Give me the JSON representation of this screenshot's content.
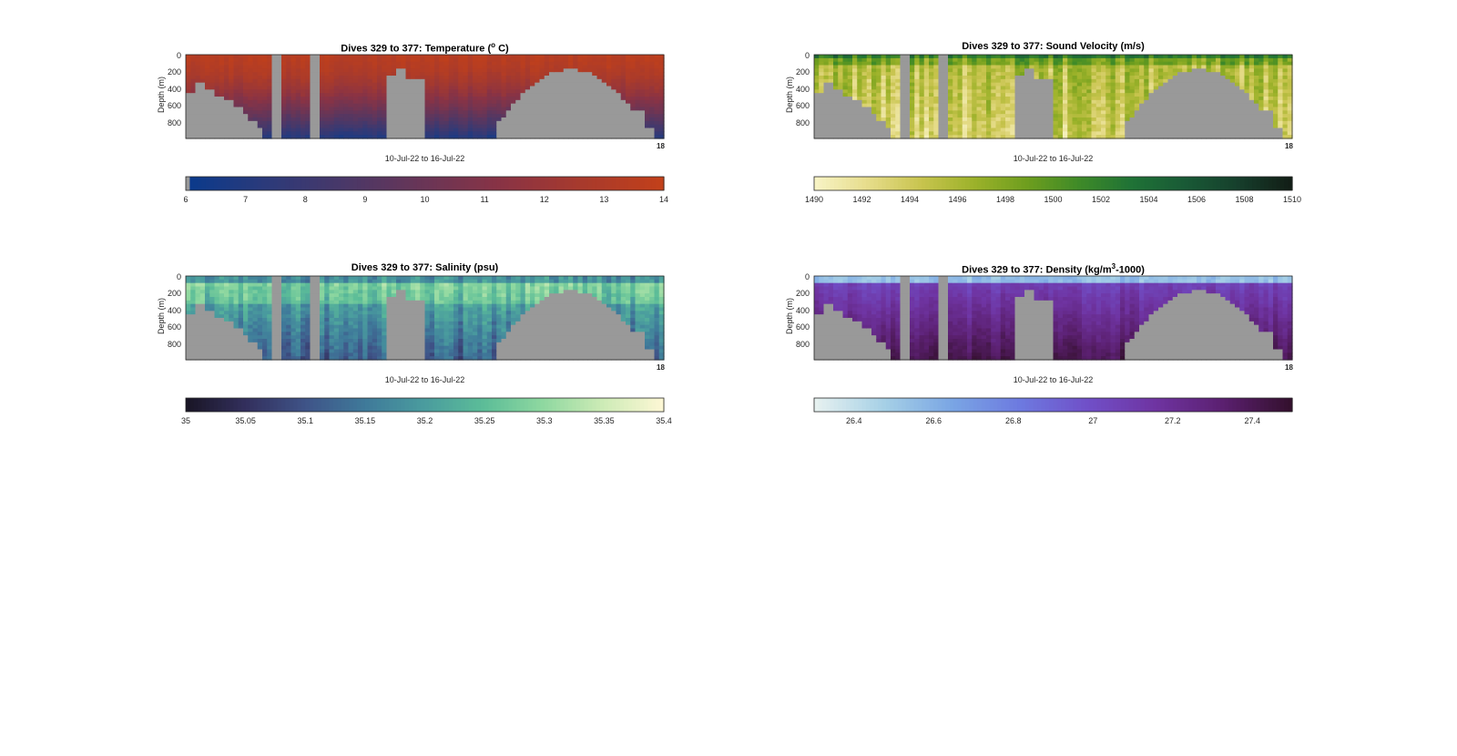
{
  "panels": [
    {
      "title": "Dives 329 to 377: Temperature (",
      "title_sup": "o",
      "title_tail": " C)",
      "ylabel": "Depth (m)",
      "xlabel": "10-Jul-22 to 16-Jul-22",
      "end_tick": "18",
      "yticks": [
        "0",
        "200",
        "400",
        "600",
        "800"
      ],
      "cbar_ticks": [
        "6",
        "7",
        "8",
        "9",
        "10",
        "11",
        "12",
        "13",
        "14"
      ],
      "colormap": [
        "#0a3a8c",
        "#2c3a7a",
        "#4a3868",
        "#6a3556",
        "#8a3344",
        "#a83a2c",
        "#c2401a"
      ],
      "surface_color": "#b8461c",
      "deep_color": "#1e3f94",
      "noise": 0.04
    },
    {
      "title": "Dives 329 to 377: Sound Velocity (m/s)",
      "title_sup": "",
      "title_tail": "",
      "ylabel": "Depth (m)",
      "xlabel": "10-Jul-22 to 16-Jul-22",
      "end_tick": "18",
      "yticks": [
        "0",
        "200",
        "400",
        "600",
        "800"
      ],
      "cbar_ticks": [
        "1490",
        "1492",
        "1494",
        "1496",
        "1498",
        "1500",
        "1502",
        "1504",
        "1506",
        "1508",
        "1510"
      ],
      "colormap": [
        "#f7f3c4",
        "#e6dc8a",
        "#c8c44e",
        "#9cb22a",
        "#6e9e1e",
        "#3e8a28",
        "#1f7236",
        "#195a36",
        "#163f2c",
        "#121e16"
      ],
      "surface_color": "#2e8a30",
      "deep_color": "#c9c655",
      "noise": 0.12
    },
    {
      "title": "Dives 329 to 377: Salinity (psu)",
      "title_sup": "",
      "title_tail": "",
      "ylabel": "Depth (m)",
      "xlabel": "10-Jul-22 to 16-Jul-22",
      "end_tick": "18",
      "yticks": [
        "0",
        "200",
        "400",
        "600",
        "800"
      ],
      "cbar_ticks": [
        "35",
        "35.05",
        "35.1",
        "35.15",
        "35.2",
        "35.25",
        "35.3",
        "35.35",
        "35.4"
      ],
      "colormap": [
        "#1a1626",
        "#33305e",
        "#3f5488",
        "#3f7a9a",
        "#4a9c9e",
        "#5cbd98",
        "#8fd8a0",
        "#cdebb6",
        "#fcf7d4"
      ],
      "surface_color": "#b7e5ac",
      "deep_color": "#3e8aa0",
      "noise": 0.1
    },
    {
      "title": "Dives 329 to 377: Density (kg/m",
      "title_sup": "3",
      "title_tail": "-1000)",
      "ylabel": "Depth (m)",
      "xlabel": "10-Jul-22 to 16-Jul-22",
      "end_tick": "18",
      "yticks": [
        "0",
        "200",
        "400",
        "600",
        "800"
      ],
      "cbar_ticks": [
        "26.4",
        "26.6",
        "26.8",
        "27",
        "27.2",
        "27.4"
      ],
      "colormap": [
        "#e6f1f0",
        "#a6d0e6",
        "#7aa6e4",
        "#6d7ae0",
        "#7050c8",
        "#6f34a2",
        "#5b2070",
        "#34102e"
      ],
      "surface_color": "#8ab6e6",
      "deep_color": "#3b1238",
      "noise": 0.05
    }
  ],
  "chart_data": [
    {
      "type": "heatmap",
      "title": "Dives 329 to 377: Temperature (o C)",
      "xlabel": "10-Jul-22 to 16-Jul-22",
      "ylabel": "Depth (m)",
      "ylim": [
        0,
        1000
      ],
      "y_reversed": true,
      "colorbar_range": [
        6,
        14
      ],
      "colorbar_ticks": [
        6,
        7,
        8,
        9,
        10,
        11,
        12,
        13,
        14
      ],
      "surface_value": 13.5,
      "bottom_value": 6.8
    },
    {
      "type": "heatmap",
      "title": "Dives 329 to 377: Sound Velocity (m/s)",
      "xlabel": "10-Jul-22 to 16-Jul-22",
      "ylabel": "Depth (m)",
      "ylim": [
        0,
        1000
      ],
      "y_reversed": true,
      "colorbar_range": [
        1490,
        1510
      ],
      "colorbar_ticks": [
        1490,
        1492,
        1494,
        1496,
        1498,
        1500,
        1502,
        1504,
        1506,
        1508,
        1510
      ],
      "surface_value": 1503,
      "bottom_value": 1496
    },
    {
      "type": "heatmap",
      "title": "Dives 329 to 377: Salinity (psu)",
      "xlabel": "10-Jul-22 to 16-Jul-22",
      "ylabel": "Depth (m)",
      "ylim": [
        0,
        1000
      ],
      "y_reversed": true,
      "colorbar_range": [
        35,
        35.4
      ],
      "colorbar_ticks": [
        35,
        35.05,
        35.1,
        35.15,
        35.2,
        35.25,
        35.3,
        35.35,
        35.4
      ],
      "surface_value": 35.33,
      "bottom_value": 35.18
    },
    {
      "type": "heatmap",
      "title": "Dives 329 to 377: Density (kg/m3-1000)",
      "xlabel": "10-Jul-22 to 16-Jul-22",
      "ylabel": "Depth (m)",
      "ylim": [
        0,
        1000
      ],
      "y_reversed": true,
      "colorbar_range": [
        26.3,
        27.5
      ],
      "colorbar_ticks": [
        26.4,
        26.6,
        26.8,
        27,
        27.2,
        27.4
      ],
      "surface_value": 26.6,
      "bottom_value": 27.45
    }
  ]
}
